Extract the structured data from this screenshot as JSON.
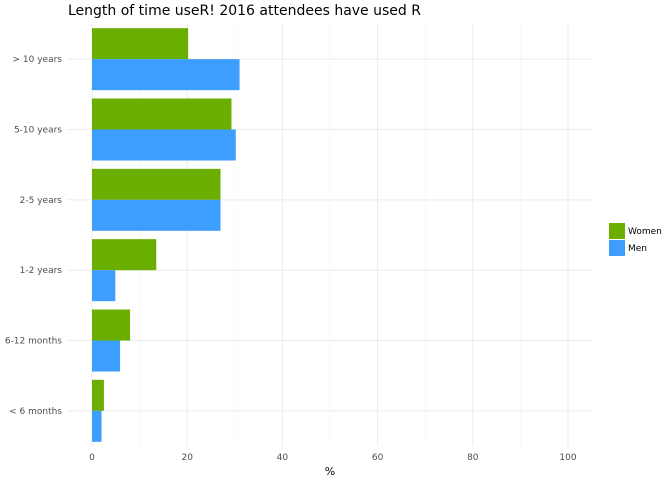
{
  "chart_data": {
    "type": "bar",
    "orientation": "horizontal",
    "title": "Length of time useR! 2016 attendees have used R",
    "xlabel": "%",
    "ylabel": "",
    "xlim": [
      0,
      105
    ],
    "xticks": [
      0,
      20,
      40,
      60,
      80,
      100
    ],
    "grid": true,
    "legend_position": "right",
    "categories": [
      "> 10 years",
      "5-10 years",
      "2-5 years",
      "1-2 years",
      "6-12 months",
      "< 6 months"
    ],
    "series": [
      {
        "name": "Women",
        "color": "#6aaf00",
        "values": [
          20.2,
          29.3,
          27.0,
          13.5,
          8.0,
          2.5
        ]
      },
      {
        "name": "Men",
        "color": "#3d9eff",
        "values": [
          31.0,
          30.2,
          27.0,
          4.9,
          5.9,
          2.0
        ]
      }
    ]
  }
}
